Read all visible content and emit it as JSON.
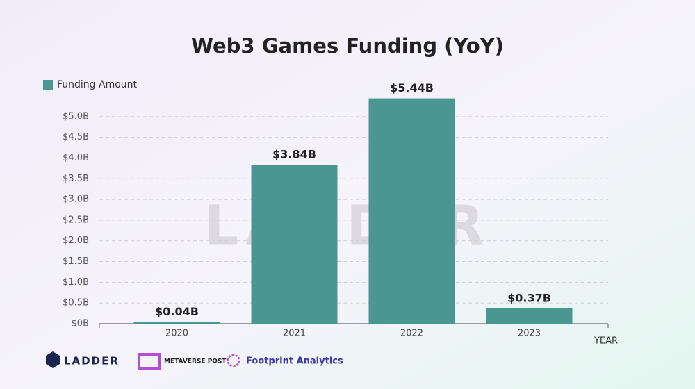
{
  "chart_data": {
    "type": "bar",
    "title": "Web3 Games Funding (YoY)",
    "categories": [
      "2020",
      "2021",
      "2022",
      "2023"
    ],
    "series": [
      {
        "name": "Funding Amount",
        "color": "#4a9690",
        "values": [
          0.04,
          3.84,
          5.44,
          0.37
        ],
        "value_labels": [
          "$0.04B",
          "$3.84B",
          "$5.44B",
          "$0.37B"
        ]
      }
    ],
    "x_label": "YEAR",
    "ylim": [
      0,
      5.5
    ],
    "yticks": [
      {
        "value": 0,
        "label": "$0B"
      },
      {
        "value": 0.5,
        "label": "$0.5B"
      },
      {
        "value": 1,
        "label": "$1.0B"
      },
      {
        "value": 1.5,
        "label": "$1.5B"
      },
      {
        "value": 2,
        "label": "$2.0B"
      },
      {
        "value": 2.5,
        "label": "$2.5B"
      },
      {
        "value": 3,
        "label": "$3.0B"
      },
      {
        "value": 3.5,
        "label": "$3.5B"
      },
      {
        "value": 4,
        "label": "$4.0B"
      },
      {
        "value": 4.5,
        "label": "$4.5B"
      },
      {
        "value": 5,
        "label": "$5.0B"
      }
    ],
    "grid": true,
    "legend": "top-left"
  },
  "watermark": "LADDER",
  "logos": [
    "LADDER",
    "METAVERSE POST",
    "Footprint Analytics"
  ]
}
